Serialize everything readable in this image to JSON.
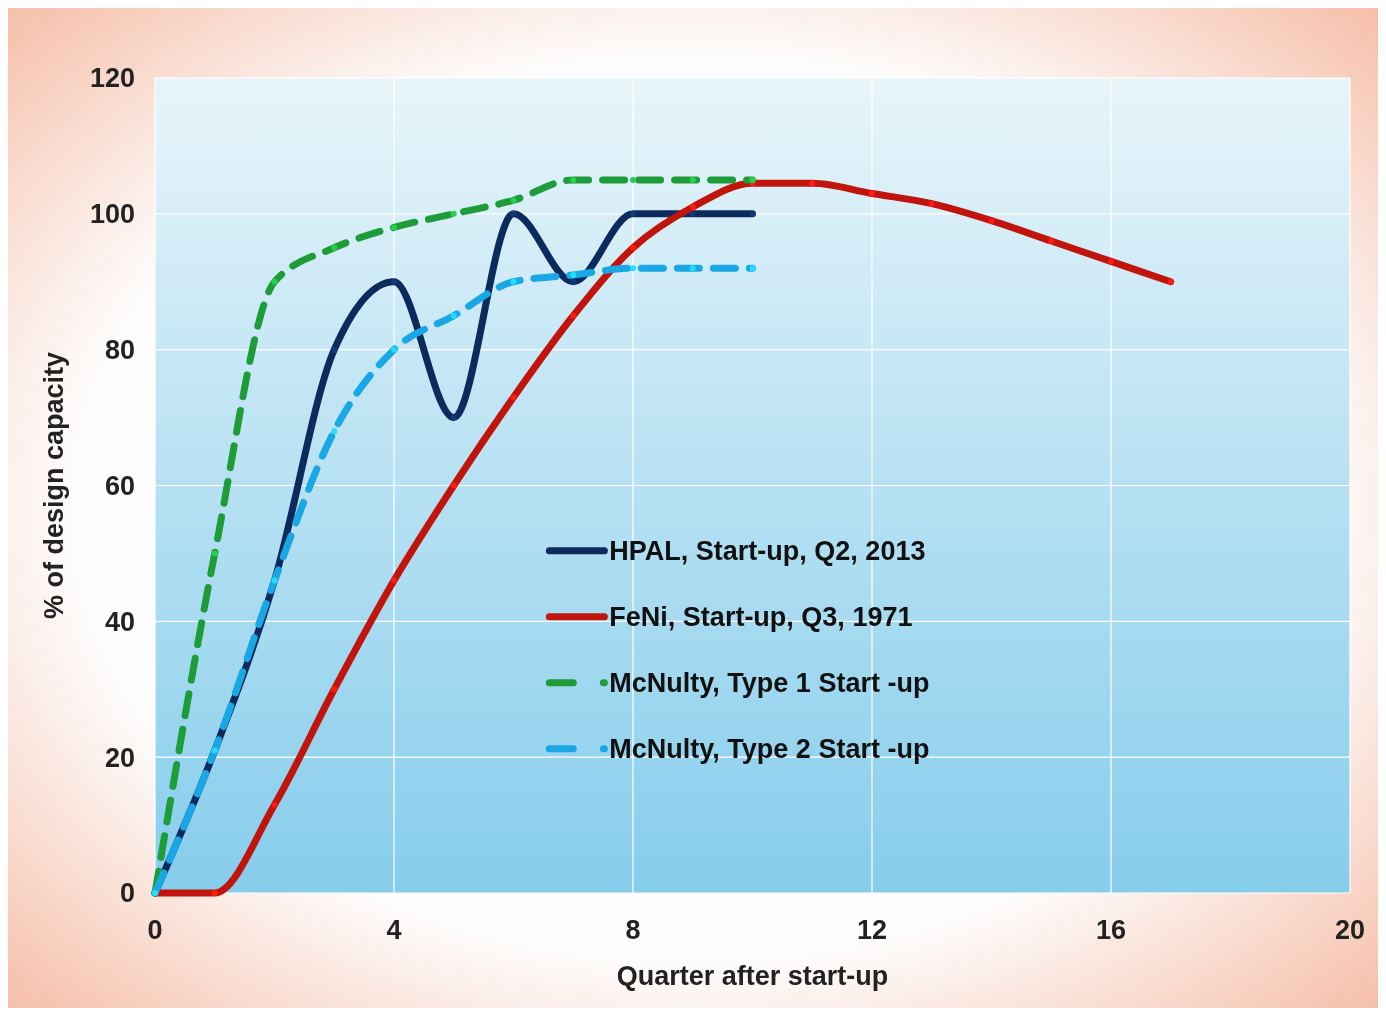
{
  "chart_data": {
    "type": "line",
    "xlabel": "Quarter after start-up",
    "ylabel": "% of design capacity",
    "xlim": [
      0,
      20
    ],
    "xticks": [
      0,
      4,
      8,
      12,
      16,
      20
    ],
    "ylim": [
      0,
      120
    ],
    "yticks": [
      0,
      20,
      40,
      60,
      80,
      100,
      120
    ],
    "grid": true,
    "legend": "right",
    "marker": "circle",
    "series": [
      {
        "name": "HPAL, Start-up, Q2, 2013",
        "color": "#0d2a5c",
        "line_style": "solid",
        "x": [
          0,
          1,
          2,
          3,
          4,
          5,
          6,
          7,
          8,
          9,
          10
        ],
        "values": [
          0,
          21,
          46,
          80,
          90,
          70,
          100,
          90,
          100,
          100,
          100
        ]
      },
      {
        "name": "FeNi, Start-up, Q3, 1971",
        "color": "#c0140c",
        "line_style": "solid",
        "x": [
          0,
          1,
          2,
          3,
          4,
          5,
          6,
          7,
          8,
          9,
          10,
          11,
          12,
          13,
          14,
          15,
          16,
          17
        ],
        "values": [
          0,
          0,
          13,
          30,
          46,
          60,
          73,
          85,
          95,
          101,
          104.5,
          104.5,
          103,
          101.5,
          99,
          96,
          93,
          90
        ]
      },
      {
        "name": "McNulty, Type 1 Start -up",
        "color": "#1f9c3a",
        "line_style": "dashed",
        "x": [
          0,
          1,
          2,
          3,
          4,
          5,
          6,
          7,
          8,
          9,
          10
        ],
        "values": [
          0,
          50,
          90,
          95,
          98,
          100,
          102,
          105,
          105,
          105,
          105
        ]
      },
      {
        "name": "McNulty, Type 2 Start -up",
        "color": "#1aa7e6",
        "line_style": "dashed",
        "x": [
          0,
          1,
          2,
          3,
          4,
          5,
          6,
          7,
          8,
          9,
          10
        ],
        "values": [
          0,
          21,
          46,
          68,
          80,
          85,
          90,
          91,
          92,
          92,
          92
        ]
      }
    ]
  }
}
